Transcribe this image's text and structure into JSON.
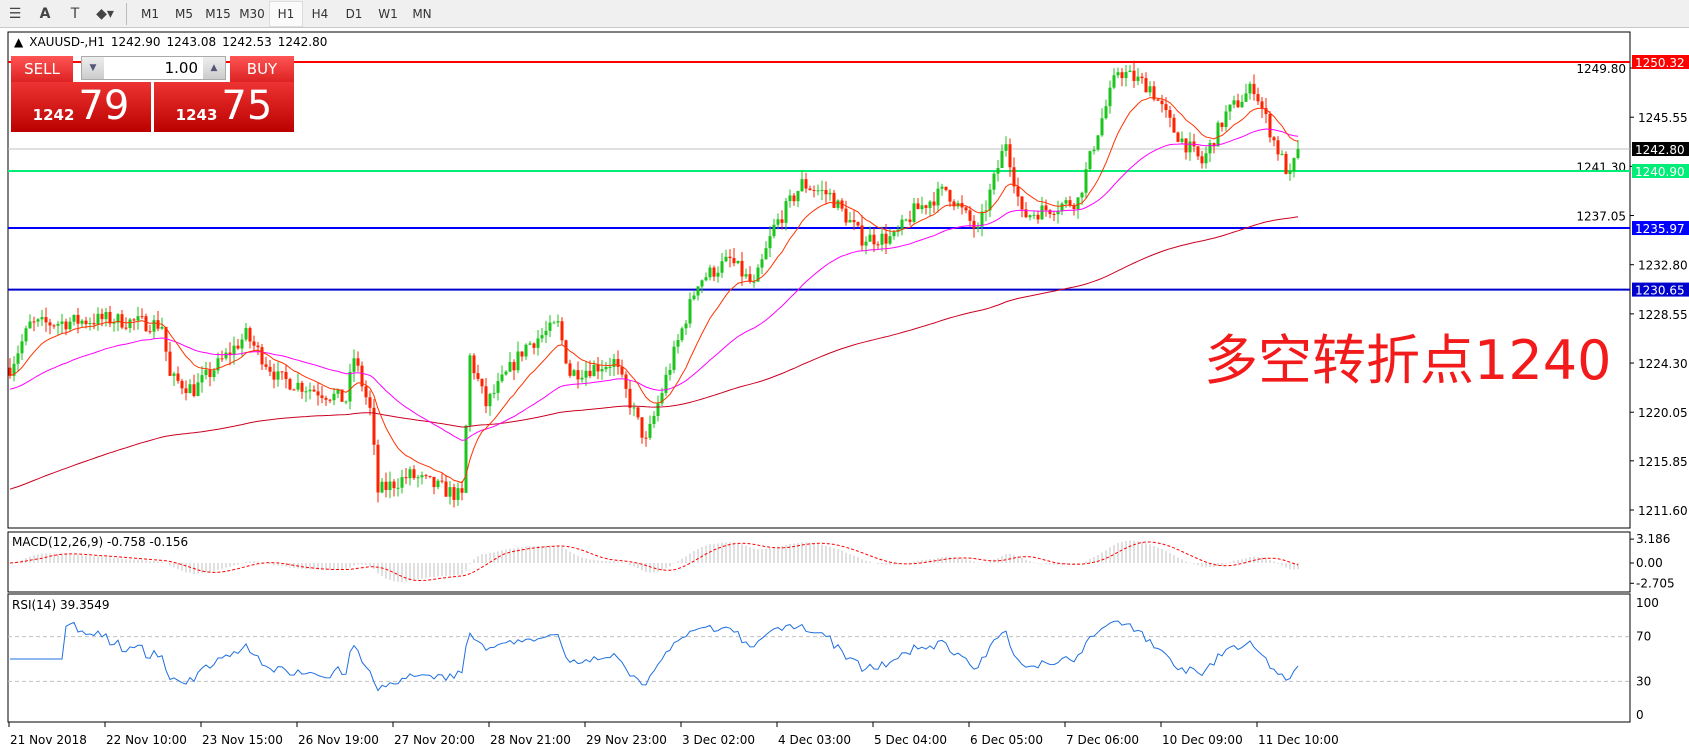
{
  "toolbar": {
    "icons": [
      "fibonacci-icon",
      "text-icon",
      "text-label-icon",
      "arrows-icon"
    ],
    "timeframes": [
      "M1",
      "M5",
      "M15",
      "M30",
      "H1",
      "H4",
      "D1",
      "W1",
      "MN"
    ],
    "active": "H1"
  },
  "symbol": {
    "name": "XAUUSD-,H1",
    "open": "1242.90",
    "high": "1243.08",
    "low": "1242.53",
    "close": "1242.80"
  },
  "trade": {
    "sell_label": "SELL",
    "buy_label": "BUY",
    "quantity": "1.00",
    "sell_small": "1242",
    "sell_big": "79",
    "buy_small": "1243",
    "buy_big": "75"
  },
  "annotation": "多空转折点1240",
  "colors": {
    "bull": "#1ec41e",
    "bear": "#ff2200",
    "ma_fast": "#ff3300",
    "ma_mid": "#ff00ff",
    "ma_slow": "#cc0022"
  },
  "chart_data": {
    "type": "candlestick",
    "y_ticks": [
      "1249.80",
      "1245.55",
      "1241.30",
      "1237.05",
      "1232.80",
      "1228.55",
      "1224.30",
      "1220.05",
      "1215.85",
      "1211.60"
    ],
    "ylim": [
      1211.6,
      1250.32
    ],
    "x_labels": [
      "21 Nov 2018",
      "22 Nov 10:00",
      "23 Nov 15:00",
      "26 Nov 19:00",
      "27 Nov 20:00",
      "28 Nov 21:00",
      "29 Nov 23:00",
      "3 Dec 02:00",
      "4 Dec 03:00",
      "5 Dec 04:00",
      "6 Dec 05:00",
      "7 Dec 06:00",
      "10 Dec 09:00",
      "11 Dec 10:00"
    ],
    "close_path": [
      [
        0,
        1223.9
      ],
      [
        5,
        1227.6
      ],
      [
        24,
        1228.1
      ],
      [
        38,
        1227.6
      ],
      [
        40,
        1223
      ],
      [
        46,
        1222
      ],
      [
        59,
        1226.7
      ],
      [
        67,
        1223
      ],
      [
        84,
        1221.1
      ],
      [
        86,
        1224.8
      ],
      [
        90,
        1220.2
      ],
      [
        92,
        1213.2
      ],
      [
        100,
        1214.6
      ],
      [
        113,
        1212.7
      ],
      [
        115,
        1224.8
      ],
      [
        119,
        1220.7
      ],
      [
        129,
        1225.8
      ],
      [
        137,
        1227.6
      ],
      [
        140,
        1223.4
      ],
      [
        151,
        1224.4
      ],
      [
        159,
        1217.4
      ],
      [
        164,
        1223
      ],
      [
        172,
        1231.4
      ],
      [
        180,
        1233.2
      ],
      [
        186,
        1230.9
      ],
      [
        191,
        1236
      ],
      [
        198,
        1239.8
      ],
      [
        205,
        1238.8
      ],
      [
        213,
        1235.1
      ],
      [
        221,
        1235.1
      ],
      [
        226,
        1237.4
      ],
      [
        234,
        1239.3
      ],
      [
        242,
        1235.6
      ],
      [
        249,
        1243.5
      ],
      [
        253,
        1237
      ],
      [
        267,
        1238.4
      ],
      [
        272,
        1244.4
      ],
      [
        277,
        1249.6
      ],
      [
        285,
        1248.2
      ],
      [
        291,
        1244.4
      ],
      [
        298,
        1241.6
      ],
      [
        304,
        1245.8
      ],
      [
        311,
        1248.2
      ],
      [
        316,
        1243.5
      ],
      [
        320,
        1240.3
      ],
      [
        322,
        1242.8
      ]
    ],
    "levels": [
      {
        "price": "1250.32",
        "color": "#ff0000"
      },
      {
        "price": "1242.80",
        "color": "#000000"
      },
      {
        "price": "1240.90",
        "color": "#00ee77"
      },
      {
        "price": "1235.97",
        "color": "#0000ff"
      },
      {
        "price": "1230.65",
        "color": "#0000cc"
      }
    ],
    "macd": {
      "label": "MACD(12,26,9) -0.758 -0.156",
      "ticks": [
        "3.186",
        "0.00",
        "-2.705"
      ]
    },
    "rsi": {
      "label": "RSI(14) 39.3549",
      "ticks": [
        "100",
        "70",
        "30",
        "0"
      ]
    }
  }
}
